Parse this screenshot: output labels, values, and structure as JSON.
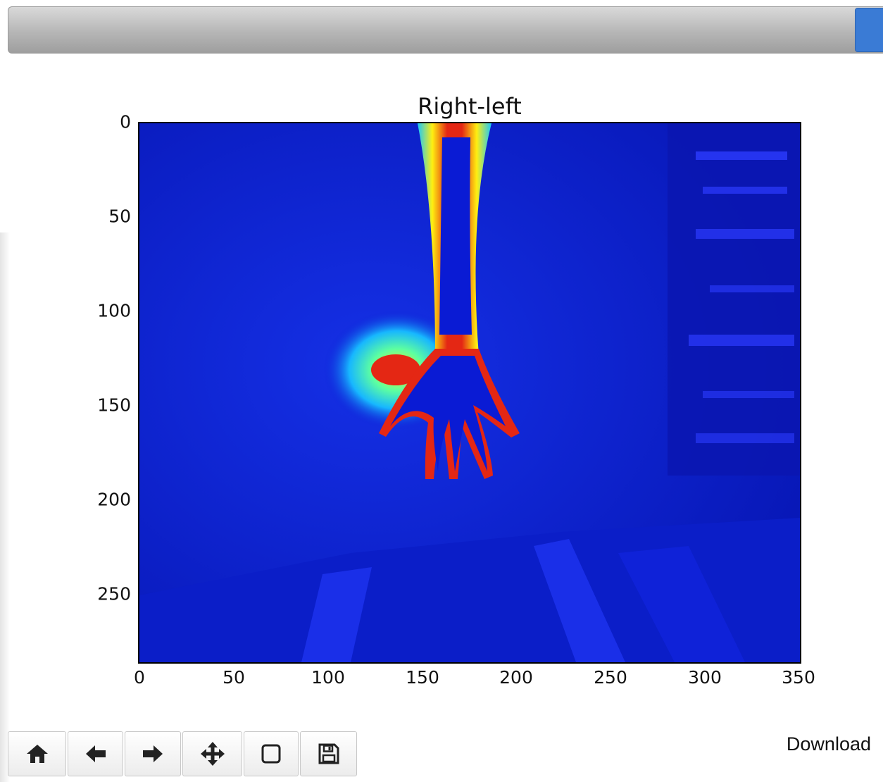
{
  "window": {
    "title": ""
  },
  "figure": {
    "title": "Right-left",
    "y_ticks": [
      "0",
      "50",
      "100",
      "150",
      "200",
      "250"
    ],
    "x_ticks": [
      "0",
      "50",
      "100",
      "150",
      "200",
      "250",
      "300",
      "350"
    ],
    "image": {
      "description_colormap": "jet",
      "background_color": "#0a1bd4",
      "hot_color": "#d62014"
    }
  },
  "toolbar": {
    "buttons": [
      {
        "name": "home-button",
        "icon": "home-icon"
      },
      {
        "name": "back-button",
        "icon": "arrow-left-icon"
      },
      {
        "name": "forward-button",
        "icon": "arrow-right-icon"
      },
      {
        "name": "pan-button",
        "icon": "move-icon"
      },
      {
        "name": "zoom-button",
        "icon": "zoom-rect-icon"
      },
      {
        "name": "save-button",
        "icon": "save-icon"
      }
    ],
    "download_label": "Download"
  }
}
